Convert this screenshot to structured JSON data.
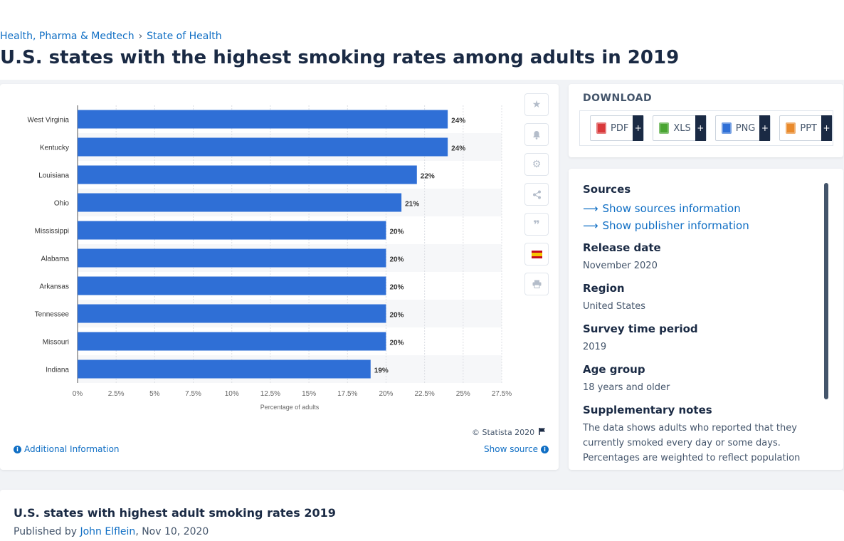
{
  "breadcrumb": {
    "first": "Health, Pharma & Medtech",
    "separator": "›",
    "second": "State of Health"
  },
  "title": "U.S. states with the highest smoking rates among adults in 2019",
  "chart_data": {
    "type": "bar",
    "orientation": "horizontal",
    "categories": [
      "West Virginia",
      "Kentucky",
      "Louisiana",
      "Ohio",
      "Mississippi",
      "Alabama",
      "Arkansas",
      "Tennessee",
      "Missouri",
      "Indiana"
    ],
    "values": [
      24,
      24,
      22,
      21,
      20,
      20,
      20,
      20,
      20,
      19
    ],
    "value_labels": [
      "24%",
      "24%",
      "22%",
      "21%",
      "20%",
      "20%",
      "20%",
      "20%",
      "20%",
      "19%"
    ],
    "x_ticks": [
      "0%",
      "2.5%",
      "5%",
      "7.5%",
      "10%",
      "12.5%",
      "15%",
      "17.5%",
      "20%",
      "22.5%",
      "25%",
      "27.5%"
    ],
    "xlim": [
      0,
      27.5
    ],
    "xlabel": "Percentage of adults",
    "ylabel": "",
    "bar_color": "#2f6fd6",
    "grid": true
  },
  "chart_footer": {
    "copyright": "© Statista 2020",
    "additional_info": "Additional Information",
    "show_source": "Show source"
  },
  "download": {
    "heading": "DOWNLOAD",
    "buttons": [
      {
        "label": "PDF",
        "plus": "+",
        "color": "#d9383a"
      },
      {
        "label": "XLS",
        "plus": "+",
        "color": "#4aa532"
      },
      {
        "label": "PNG",
        "plus": "+",
        "color": "#2f6fd6"
      },
      {
        "label": "PPT",
        "plus": "+",
        "color": "#e98a2c"
      }
    ]
  },
  "info": {
    "sources_label": "Sources",
    "show_sources": "Show sources information",
    "show_publisher": "Show publisher information",
    "release_label": "Release date",
    "release_value": "November 2020",
    "region_label": "Region",
    "region_value": "United States",
    "survey_label": "Survey time period",
    "survey_value": "2019",
    "age_label": "Age group",
    "age_value": "18 years and older",
    "notes_label": "Supplementary notes",
    "notes_value": "The data shows adults who reported that they currently smoked every day or some days. Percentages are weighted to reflect population"
  },
  "bottom": {
    "title": "U.S. states with highest adult smoking rates 2019",
    "published_by": "Published by",
    "author": "John Elflein",
    "date": ", Nov 10, 2020"
  },
  "icons": [
    "star-icon",
    "bell-icon",
    "gear-icon",
    "share-icon",
    "quote-icon",
    "spain-flag-icon",
    "print-icon",
    "flag-icon",
    "info-icon",
    "arrow-right-icon"
  ]
}
